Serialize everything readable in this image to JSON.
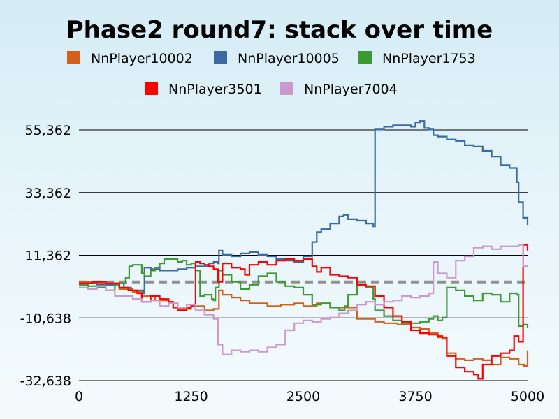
{
  "chart_data": {
    "type": "line",
    "title": "Phase2 round7: stack over time",
    "xlabel": "",
    "ylabel": "",
    "xlim": [
      0,
      5000
    ],
    "ylim": [
      -32638,
      55362
    ],
    "x_ticks": [
      "0",
      "1250",
      "2500",
      "3750",
      "5000"
    ],
    "y_ticks": [
      "55,362",
      "33,362",
      "11,362",
      "-10,638",
      "-32,638"
    ],
    "grid": "horizontal",
    "legend_position": "top",
    "baseline": 2000,
    "series": [
      {
        "name": "NnPlayer10002",
        "color": "#d35f1b",
        "points": [
          [
            0,
            2000
          ],
          [
            150,
            1500
          ],
          [
            300,
            1000
          ],
          [
            450,
            -500
          ],
          [
            600,
            -1500
          ],
          [
            700,
            -3000
          ],
          [
            850,
            -4500
          ],
          [
            1000,
            -5500
          ],
          [
            1100,
            -7500
          ],
          [
            1250,
            -6500
          ],
          [
            1400,
            -8000
          ],
          [
            1500,
            -7500
          ],
          [
            1560,
            -1000
          ],
          [
            1600,
            -2500
          ],
          [
            1700,
            -3500
          ],
          [
            1800,
            -4500
          ],
          [
            1900,
            -5500
          ],
          [
            2000,
            -5500
          ],
          [
            2100,
            -6500
          ],
          [
            2250,
            -6000
          ],
          [
            2400,
            -5500
          ],
          [
            2500,
            -6500
          ],
          [
            2650,
            -5500
          ],
          [
            2800,
            -7000
          ],
          [
            2950,
            -7000
          ],
          [
            3100,
            -11000
          ],
          [
            3300,
            -12000
          ],
          [
            3400,
            -12500
          ],
          [
            3550,
            -13000
          ],
          [
            3700,
            -14000
          ],
          [
            3800,
            -14500
          ],
          [
            3900,
            -16000
          ],
          [
            4000,
            -17500
          ],
          [
            4050,
            -18000
          ],
          [
            4100,
            -23000
          ],
          [
            4200,
            -25000
          ],
          [
            4300,
            -25500
          ],
          [
            4400,
            -25000
          ],
          [
            4500,
            -25500
          ],
          [
            4600,
            -27000
          ],
          [
            4700,
            -24500
          ],
          [
            4800,
            -25000
          ],
          [
            4900,
            -27000
          ],
          [
            4960,
            -27500
          ],
          [
            5000,
            -22000
          ]
        ]
      },
      {
        "name": "NnPlayer10005",
        "color": "#3a6aa0",
        "points": [
          [
            0,
            1000
          ],
          [
            100,
            1500
          ],
          [
            200,
            1000
          ],
          [
            300,
            1000
          ],
          [
            400,
            1500
          ],
          [
            500,
            0
          ],
          [
            580,
            -1000
          ],
          [
            650,
            -1000
          ],
          [
            720,
            -2000
          ],
          [
            730,
            7000
          ],
          [
            800,
            6500
          ],
          [
            900,
            6000
          ],
          [
            1000,
            6000
          ],
          [
            1100,
            6500
          ],
          [
            1200,
            7000
          ],
          [
            1300,
            7500
          ],
          [
            1400,
            7500
          ],
          [
            1450,
            8500
          ],
          [
            1500,
            9000
          ],
          [
            1550,
            8500
          ],
          [
            1560,
            13000
          ],
          [
            1600,
            11500
          ],
          [
            1700,
            11000
          ],
          [
            1800,
            12000
          ],
          [
            1900,
            12500
          ],
          [
            2000,
            11500
          ],
          [
            2100,
            11000
          ],
          [
            2200,
            10000
          ],
          [
            2300,
            9500
          ],
          [
            2400,
            9000
          ],
          [
            2480,
            9000
          ],
          [
            2500,
            11000
          ],
          [
            2600,
            16000
          ],
          [
            2650,
            19500
          ],
          [
            2700,
            20500
          ],
          [
            2800,
            22500
          ],
          [
            2900,
            25000
          ],
          [
            2950,
            25500
          ],
          [
            3000,
            24000
          ],
          [
            3100,
            23500
          ],
          [
            3200,
            22500
          ],
          [
            3280,
            21500
          ],
          [
            3300,
            55500
          ],
          [
            3400,
            56500
          ],
          [
            3500,
            57000
          ],
          [
            3600,
            57000
          ],
          [
            3700,
            56500
          ],
          [
            3750,
            58000
          ],
          [
            3800,
            58500
          ],
          [
            3850,
            56000
          ],
          [
            3900,
            55500
          ],
          [
            3950,
            53500
          ],
          [
            4000,
            53000
          ],
          [
            4100,
            52000
          ],
          [
            4200,
            51500
          ],
          [
            4300,
            50000
          ],
          [
            4400,
            49500
          ],
          [
            4500,
            48000
          ],
          [
            4600,
            46000
          ],
          [
            4700,
            43000
          ],
          [
            4800,
            42000
          ],
          [
            4880,
            37000
          ],
          [
            4900,
            30000
          ],
          [
            4950,
            24500
          ],
          [
            5000,
            22000
          ]
        ]
      },
      {
        "name": "NnPlayer1753",
        "color": "#3c9a33",
        "points": [
          [
            0,
            1000
          ],
          [
            100,
            500
          ],
          [
            200,
            0
          ],
          [
            300,
            -1000
          ],
          [
            400,
            1000
          ],
          [
            450,
            1500
          ],
          [
            520,
            3500
          ],
          [
            560,
            7500
          ],
          [
            600,
            8000
          ],
          [
            650,
            8000
          ],
          [
            700,
            5000
          ],
          [
            730,
            4000
          ],
          [
            800,
            6000
          ],
          [
            850,
            7000
          ],
          [
            900,
            8500
          ],
          [
            950,
            10000
          ],
          [
            1000,
            10000
          ],
          [
            1100,
            9000
          ],
          [
            1150,
            9500
          ],
          [
            1200,
            8000
          ],
          [
            1250,
            8500
          ],
          [
            1300,
            6000
          ],
          [
            1350,
            -3000
          ],
          [
            1400,
            -2500
          ],
          [
            1480,
            -4000
          ],
          [
            1500,
            -4500
          ],
          [
            1520,
            0
          ],
          [
            1560,
            6000
          ],
          [
            1600,
            4500
          ],
          [
            1700,
            2000
          ],
          [
            1800,
            -500
          ],
          [
            1900,
            1000
          ],
          [
            2000,
            4000
          ],
          [
            2100,
            5000
          ],
          [
            2200,
            2000
          ],
          [
            2300,
            500
          ],
          [
            2400,
            0
          ],
          [
            2500,
            -2500
          ],
          [
            2600,
            -6000
          ],
          [
            2700,
            -5500
          ],
          [
            2800,
            -7000
          ],
          [
            2900,
            -8000
          ],
          [
            2960,
            -6500
          ],
          [
            3000,
            -2500
          ],
          [
            3100,
            1000
          ],
          [
            3200,
            0
          ],
          [
            3280,
            -4000
          ],
          [
            3300,
            -8000
          ],
          [
            3400,
            -10000
          ],
          [
            3500,
            -11500
          ],
          [
            3600,
            -12500
          ],
          [
            3700,
            -12500
          ],
          [
            3800,
            -12000
          ],
          [
            3900,
            -11000
          ],
          [
            3950,
            -10000
          ],
          [
            4000,
            -11500
          ],
          [
            4050,
            -10500
          ],
          [
            4100,
            0
          ],
          [
            4200,
            -1000
          ],
          [
            4300,
            -3000
          ],
          [
            4400,
            -4500
          ],
          [
            4500,
            -2000
          ],
          [
            4600,
            -2500
          ],
          [
            4700,
            -5000
          ],
          [
            4800,
            -2000
          ],
          [
            4880,
            -2500
          ],
          [
            4900,
            -13500
          ],
          [
            4950,
            -13000
          ],
          [
            5000,
            -14000
          ]
        ]
      },
      {
        "name": "NnPlayer3501",
        "color": "#ff0000",
        "points": [
          [
            0,
            1500
          ],
          [
            150,
            2000
          ],
          [
            300,
            1500
          ],
          [
            450,
            0
          ],
          [
            550,
            -1000
          ],
          [
            650,
            -2000
          ],
          [
            700,
            -5000
          ],
          [
            800,
            -3000
          ],
          [
            900,
            -4000
          ],
          [
            1000,
            -5000
          ],
          [
            1050,
            -7000
          ],
          [
            1100,
            -8000
          ],
          [
            1200,
            -7000
          ],
          [
            1250,
            -6500
          ],
          [
            1300,
            9000
          ],
          [
            1350,
            8500
          ],
          [
            1400,
            8000
          ],
          [
            1450,
            7500
          ],
          [
            1500,
            6500
          ],
          [
            1550,
            2000
          ],
          [
            1600,
            8500
          ],
          [
            1700,
            7000
          ],
          [
            1800,
            6500
          ],
          [
            1850,
            4500
          ],
          [
            1900,
            8000
          ],
          [
            2000,
            9000
          ],
          [
            2100,
            8000
          ],
          [
            2200,
            9500
          ],
          [
            2300,
            10000
          ],
          [
            2400,
            9500
          ],
          [
            2500,
            10000
          ],
          [
            2600,
            7500
          ],
          [
            2650,
            5500
          ],
          [
            2700,
            7000
          ],
          [
            2800,
            4500
          ],
          [
            2900,
            4000
          ],
          [
            3000,
            3500
          ],
          [
            3100,
            1000
          ],
          [
            3200,
            500
          ],
          [
            3300,
            -3000
          ],
          [
            3400,
            -7000
          ],
          [
            3500,
            -10000
          ],
          [
            3600,
            -12000
          ],
          [
            3700,
            -15000
          ],
          [
            3800,
            -16000
          ],
          [
            3900,
            -16500
          ],
          [
            4000,
            -17000
          ],
          [
            4050,
            -17500
          ],
          [
            4100,
            -24000
          ],
          [
            4200,
            -28000
          ],
          [
            4300,
            -29500
          ],
          [
            4400,
            -30500
          ],
          [
            4450,
            -32000
          ],
          [
            4500,
            -27000
          ],
          [
            4600,
            -24000
          ],
          [
            4700,
            -23000
          ],
          [
            4800,
            -22000
          ],
          [
            4850,
            -17000
          ],
          [
            4900,
            -19000
          ],
          [
            4950,
            15000
          ],
          [
            5000,
            13000
          ]
        ]
      },
      {
        "name": "NnPlayer7004",
        "color": "#cc99cc",
        "points": [
          [
            0,
            0
          ],
          [
            100,
            -500
          ],
          [
            200,
            500
          ],
          [
            300,
            -1000
          ],
          [
            400,
            -3000
          ],
          [
            500,
            -3000
          ],
          [
            600,
            -4000
          ],
          [
            700,
            -5000
          ],
          [
            800,
            -4500
          ],
          [
            900,
            -6500
          ],
          [
            1000,
            -5500
          ],
          [
            1100,
            -7000
          ],
          [
            1200,
            -6000
          ],
          [
            1300,
            -8000
          ],
          [
            1400,
            -9500
          ],
          [
            1500,
            -11000
          ],
          [
            1550,
            -20000
          ],
          [
            1600,
            -23500
          ],
          [
            1700,
            -22000
          ],
          [
            1800,
            -22500
          ],
          [
            1900,
            -22000
          ],
          [
            2000,
            -22500
          ],
          [
            2100,
            -21000
          ],
          [
            2200,
            -20000
          ],
          [
            2300,
            -15000
          ],
          [
            2400,
            -12500
          ],
          [
            2500,
            -11500
          ],
          [
            2600,
            -12000
          ],
          [
            2700,
            -11000
          ],
          [
            2800,
            -10500
          ],
          [
            2900,
            -9000
          ],
          [
            3000,
            -8000
          ],
          [
            3100,
            -6000
          ],
          [
            3200,
            -5000
          ],
          [
            3300,
            -6000
          ],
          [
            3400,
            -5000
          ],
          [
            3500,
            -4500
          ],
          [
            3600,
            -3000
          ],
          [
            3700,
            -3500
          ],
          [
            3800,
            -3000
          ],
          [
            3900,
            -2000
          ],
          [
            3950,
            9000
          ],
          [
            4000,
            5000
          ],
          [
            4100,
            3500
          ],
          [
            4200,
            9500
          ],
          [
            4300,
            11000
          ],
          [
            4400,
            14000
          ],
          [
            4500,
            14500
          ],
          [
            4600,
            13500
          ],
          [
            4700,
            14500
          ],
          [
            4800,
            14500
          ],
          [
            4900,
            15000
          ],
          [
            4950,
            7500
          ],
          [
            5000,
            8000
          ]
        ]
      }
    ]
  }
}
